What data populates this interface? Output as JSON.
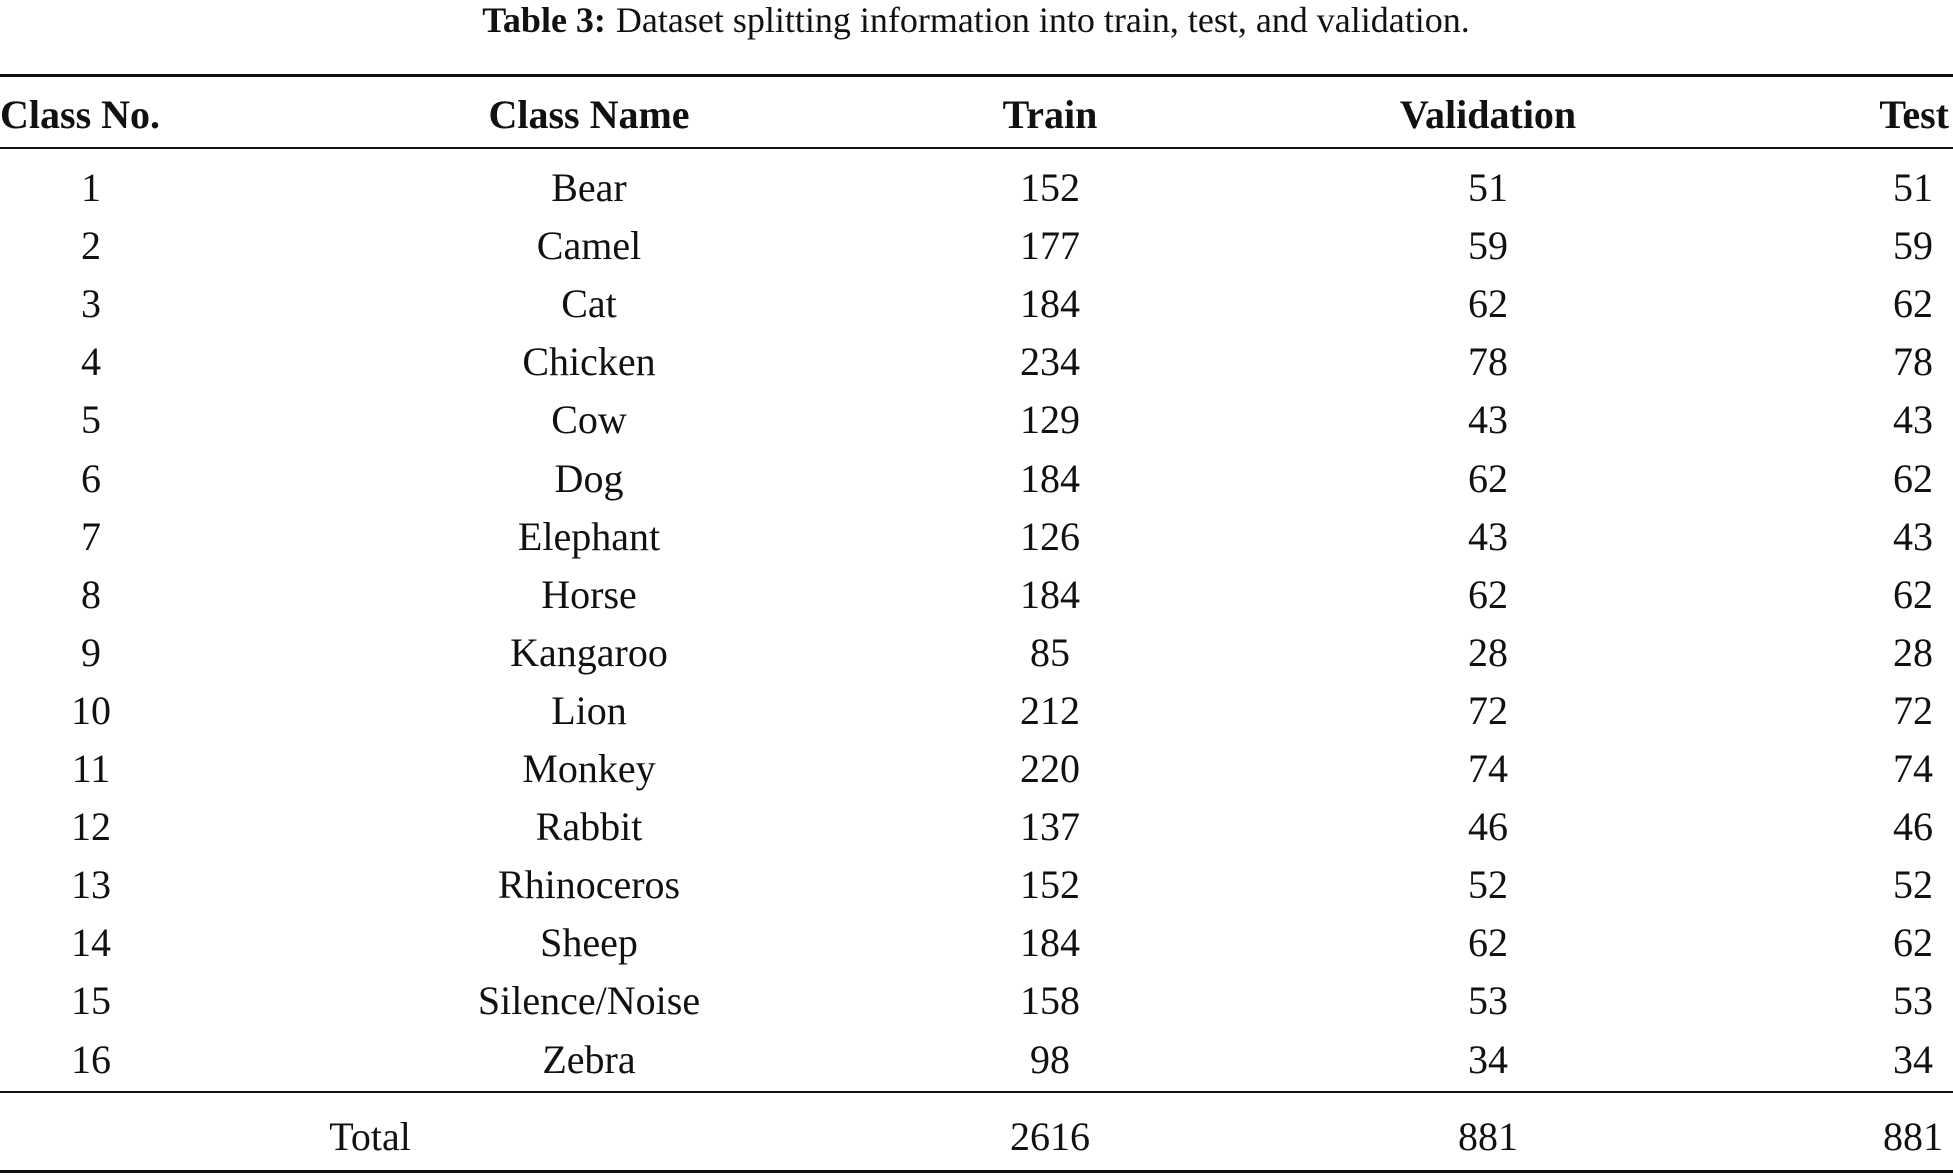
{
  "caption": {
    "label": "Table 3:",
    "text": "Dataset splitting information into train, test, and validation."
  },
  "table": {
    "headers": [
      "Class No.",
      "Class Name",
      "Train",
      "Validation",
      "Test"
    ],
    "rows": [
      [
        "1",
        "Bear",
        "152",
        "51",
        "51"
      ],
      [
        "2",
        "Camel",
        "177",
        "59",
        "59"
      ],
      [
        "3",
        "Cat",
        "184",
        "62",
        "62"
      ],
      [
        "4",
        "Chicken",
        "234",
        "78",
        "78"
      ],
      [
        "5",
        "Cow",
        "129",
        "43",
        "43"
      ],
      [
        "6",
        "Dog",
        "184",
        "62",
        "62"
      ],
      [
        "7",
        "Elephant",
        "126",
        "43",
        "43"
      ],
      [
        "8",
        "Horse",
        "184",
        "62",
        "62"
      ],
      [
        "9",
        "Kangaroo",
        "85",
        "28",
        "28"
      ],
      [
        "10",
        "Lion",
        "212",
        "72",
        "72"
      ],
      [
        "11",
        "Monkey",
        "220",
        "74",
        "74"
      ],
      [
        "12",
        "Rabbit",
        "137",
        "46",
        "46"
      ],
      [
        "13",
        "Rhinoceros",
        "152",
        "52",
        "52"
      ],
      [
        "14",
        "Sheep",
        "184",
        "62",
        "62"
      ],
      [
        "15",
        "Silence/Noise",
        "158",
        "53",
        "53"
      ],
      [
        "16",
        "Zebra",
        "98",
        "34",
        "34"
      ]
    ],
    "total": [
      "Total",
      "2616",
      "881",
      "881"
    ]
  }
}
